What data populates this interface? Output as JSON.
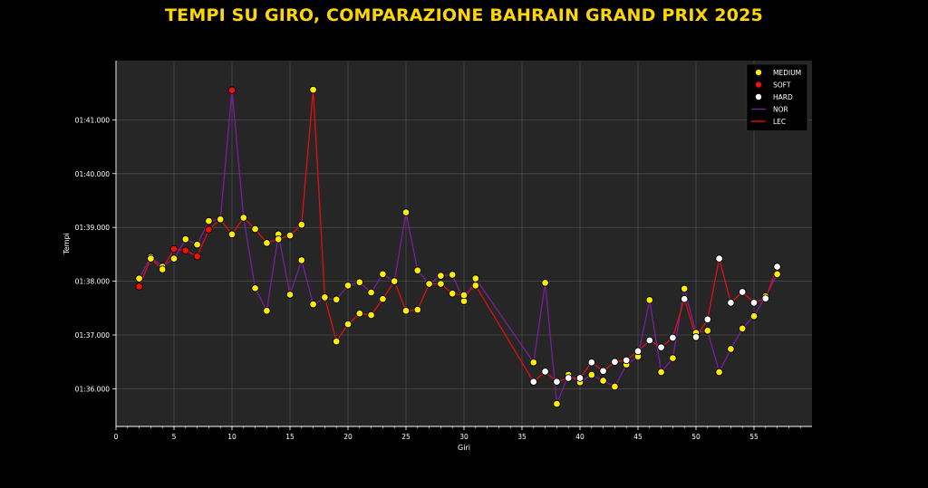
{
  "chart_data": {
    "type": "line",
    "title": "TEMPI SU GIRO, COMPARAZIONE BAHRAIN GRAND PRIX 2025",
    "xlabel": "Giri",
    "ylabel": "Tempi",
    "xlim": [
      0,
      60
    ],
    "ylim": [
      95.3,
      102.1
    ],
    "x_ticks": [
      0,
      5,
      10,
      15,
      20,
      25,
      30,
      35,
      40,
      45,
      50,
      55
    ],
    "y_ticks": [
      96,
      97,
      98,
      99,
      100,
      101
    ],
    "y_tick_labels": [
      "01:36.000",
      "01:37.000",
      "01:38.000",
      "01:39.000",
      "01:40.000",
      "01:41.000"
    ],
    "grid": true,
    "legend_position": "top-right",
    "colors": {
      "background": "#000000",
      "plot_background": "#262626",
      "grid": "#555555",
      "title": "#ffd700",
      "MEDIUM": "#ffee00",
      "SOFT": "#ee1111",
      "HARD": "#ffffff",
      "NOR": "#7a1f9e",
      "LEC": "#e01010"
    },
    "legend": [
      {
        "label": "MEDIUM",
        "kind": "marker",
        "color_key": "MEDIUM"
      },
      {
        "label": "SOFT",
        "kind": "marker",
        "color_key": "SOFT"
      },
      {
        "label": "HARD",
        "kind": "marker",
        "color_key": "HARD"
      },
      {
        "label": "NOR",
        "kind": "line",
        "color_key": "NOR"
      },
      {
        "label": "LEC",
        "kind": "line",
        "color_key": "LEC"
      }
    ],
    "series": [
      {
        "name": "NOR",
        "x": [
          2,
          3,
          4,
          5,
          6,
          7,
          8,
          9,
          10,
          11,
          12,
          13,
          14,
          15,
          16,
          17,
          18,
          19,
          20,
          21,
          22,
          23,
          24,
          25,
          26,
          27,
          28,
          29,
          30,
          31,
          36,
          37,
          38,
          39,
          40,
          41,
          42,
          43,
          44,
          45,
          46,
          47,
          48,
          49,
          50,
          51,
          52,
          53,
          54,
          55,
          56,
          57
        ],
        "y": [
          98.05,
          98.45,
          98.27,
          98.42,
          98.78,
          98.68,
          99.12,
          99.15,
          101.55,
          99.18,
          97.87,
          97.45,
          98.87,
          97.75,
          98.39,
          97.57,
          97.68,
          97.66,
          97.92,
          97.98,
          97.79,
          98.13,
          97.99,
          99.28,
          98.2,
          97.95,
          98.1,
          98.12,
          97.63,
          98.05,
          96.49,
          97.97,
          95.72,
          96.26,
          96.12,
          96.26,
          96.15,
          96.04,
          96.45,
          96.6,
          97.65,
          96.31,
          96.57,
          97.86,
          97.04,
          97.08,
          96.31,
          96.74,
          97.12,
          97.35,
          97.72,
          98.13
        ],
        "compound": [
          "MEDIUM",
          "MEDIUM",
          "MEDIUM",
          "MEDIUM",
          "MEDIUM",
          "MEDIUM",
          "MEDIUM",
          "MEDIUM",
          "SOFT",
          "MEDIUM",
          "MEDIUM",
          "MEDIUM",
          "MEDIUM",
          "MEDIUM",
          "MEDIUM",
          "MEDIUM",
          "MEDIUM",
          "MEDIUM",
          "MEDIUM",
          "MEDIUM",
          "MEDIUM",
          "MEDIUM",
          "MEDIUM",
          "MEDIUM",
          "MEDIUM",
          "MEDIUM",
          "MEDIUM",
          "MEDIUM",
          "MEDIUM",
          "MEDIUM",
          "MEDIUM",
          "MEDIUM",
          "MEDIUM",
          "MEDIUM",
          "MEDIUM",
          "MEDIUM",
          "MEDIUM",
          "MEDIUM",
          "MEDIUM",
          "MEDIUM",
          "MEDIUM",
          "MEDIUM",
          "MEDIUM",
          "MEDIUM",
          "MEDIUM",
          "MEDIUM",
          "MEDIUM",
          "MEDIUM",
          "MEDIUM",
          "MEDIUM",
          "MEDIUM",
          "MEDIUM"
        ]
      },
      {
        "name": "LEC",
        "x": [
          2,
          3,
          4,
          5,
          6,
          7,
          8,
          9,
          10,
          11,
          12,
          13,
          14,
          15,
          16,
          17,
          18,
          19,
          20,
          21,
          22,
          23,
          24,
          25,
          26,
          27,
          28,
          29,
          30,
          31,
          36,
          37,
          38,
          39,
          40,
          41,
          42,
          43,
          44,
          45,
          46,
          47,
          48,
          49,
          50,
          51,
          52,
          53,
          54,
          55,
          56,
          57
        ],
        "y": [
          97.9,
          98.42,
          98.22,
          98.6,
          98.57,
          98.46,
          98.96,
          99.15,
          98.87,
          99.18,
          98.97,
          98.71,
          98.78,
          98.85,
          99.05,
          101.56,
          97.7,
          96.88,
          97.2,
          97.4,
          97.37,
          97.67,
          98.0,
          97.45,
          97.47,
          97.95,
          97.95,
          97.77,
          97.74,
          97.92,
          96.13,
          96.32,
          96.13,
          96.2,
          96.2,
          96.49,
          96.33,
          96.5,
          96.53,
          96.7,
          96.9,
          96.77,
          96.95,
          97.67,
          96.96,
          97.29,
          98.42,
          97.6,
          97.8,
          97.6,
          97.68,
          98.27
        ],
        "compound": [
          "SOFT",
          "MEDIUM",
          "MEDIUM",
          "SOFT",
          "SOFT",
          "SOFT",
          "SOFT",
          "MEDIUM",
          "MEDIUM",
          "MEDIUM",
          "MEDIUM",
          "MEDIUM",
          "MEDIUM",
          "MEDIUM",
          "MEDIUM",
          "MEDIUM",
          "MEDIUM",
          "MEDIUM",
          "MEDIUM",
          "MEDIUM",
          "MEDIUM",
          "MEDIUM",
          "MEDIUM",
          "MEDIUM",
          "MEDIUM",
          "MEDIUM",
          "MEDIUM",
          "MEDIUM",
          "MEDIUM",
          "MEDIUM",
          "HARD",
          "HARD",
          "HARD",
          "HARD",
          "HARD",
          "HARD",
          "HARD",
          "HARD",
          "HARD",
          "HARD",
          "HARD",
          "HARD",
          "HARD",
          "HARD",
          "HARD",
          "HARD",
          "HARD",
          "HARD",
          "HARD",
          "HARD",
          "HARD",
          "HARD"
        ]
      }
    ]
  }
}
